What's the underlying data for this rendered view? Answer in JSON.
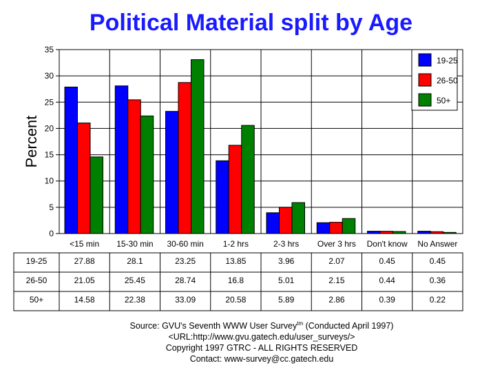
{
  "chart_data": {
    "type": "bar",
    "title": "Political Material split by Age",
    "ylabel": "Percent",
    "xlabel": "",
    "ylim": [
      0,
      35
    ],
    "yticks": [
      0,
      5,
      10,
      15,
      20,
      25,
      30,
      35
    ],
    "grid": true,
    "legend": "top-right",
    "categories": [
      "<15 min",
      "15-30 min",
      "30-60 min",
      "1-2 hrs",
      "2-3 hrs",
      "Over 3 hrs",
      "Don't know",
      "No Answer"
    ],
    "series": [
      {
        "name": "19-25",
        "color": "#0000ff",
        "values": [
          27.88,
          28.1,
          23.25,
          13.85,
          3.96,
          2.07,
          0.45,
          0.45
        ],
        "labels": [
          "27.88",
          "28.1",
          "23.25",
          "13.85",
          "3.96",
          "2.07",
          "0.45",
          "0.45"
        ]
      },
      {
        "name": "26-50",
        "color": "#ff0000",
        "values": [
          21.05,
          25.45,
          28.74,
          16.8,
          5.01,
          2.15,
          0.44,
          0.36
        ],
        "labels": [
          "21.05",
          "25.45",
          "28.74",
          "16.8",
          "5.01",
          "2.15",
          "0.44",
          "0.36"
        ]
      },
      {
        "name": "50+",
        "color": "#008000",
        "values": [
          14.58,
          22.38,
          33.09,
          20.58,
          5.89,
          2.86,
          0.39,
          0.22
        ],
        "labels": [
          "14.58",
          "22.38",
          "33.09",
          "20.58",
          "5.89",
          "2.86",
          "0.39",
          "0.22"
        ]
      }
    ]
  },
  "footer": {
    "source": "Source: GVU's Seventh WWW User Survey",
    "tm": "tm",
    "conducted": " (Conducted April 1997)",
    "url": "<URL:http://www.gvu.gatech.edu/user_surveys/>",
    "copyright": "Copyright 1997 GTRC - ALL RIGHTS RESERVED",
    "contact": "Contact: www-survey@cc.gatech.edu"
  }
}
